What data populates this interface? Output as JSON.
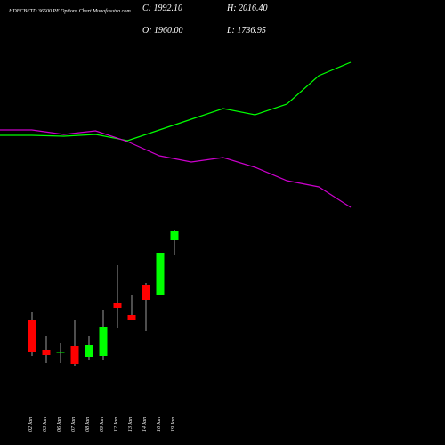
{
  "chart_data": [
    {
      "type": "candlestick",
      "title": "HDFCBETD 36500 PE Options Chart Munafasutra.com",
      "close_label": "C: 1992.10",
      "high_label": "H: 2016.40",
      "open_label": "O: 1960.00",
      "low_label": "L: 1736.95",
      "categories": [
        "02 Jan",
        "03 Jan",
        "06 Jan",
        "07 Jan",
        "08 Jan",
        "09 Jan",
        "12 Jan",
        "13 Jan",
        "14 Jan",
        "16 Jan",
        "19 Jan"
      ],
      "open": [
        140,
        107,
        104,
        111,
        99,
        100,
        160,
        146,
        180,
        168,
        230
      ],
      "high": [
        150,
        122,
        115,
        140,
        122,
        152,
        202,
        168,
        182,
        216,
        242
      ],
      "low": [
        100,
        92,
        92,
        89,
        95,
        95,
        132,
        140,
        128,
        168,
        214
      ],
      "close": [
        104,
        101,
        105,
        91,
        112,
        133,
        154,
        140,
        163,
        216,
        240
      ],
      "up_color": "#00ff00",
      "down_color": "#ff0000",
      "ylim": [
        0,
        500
      ]
    },
    {
      "type": "line",
      "x": [
        0,
        1,
        2,
        3,
        4,
        5,
        6,
        7,
        8,
        9,
        10,
        11
      ],
      "xlim": [
        0,
        11
      ],
      "ylim": [
        0,
        500
      ],
      "series": [
        {
          "color": "#00ff00",
          "values": [
            348,
            348,
            347,
            349,
            342,
            354,
            366,
            378,
            371,
            383,
            415,
            430
          ]
        },
        {
          "color": "#cc00cc",
          "values": [
            354,
            354,
            349,
            353,
            341,
            325,
            318,
            323,
            312,
            297,
            290,
            267
          ]
        }
      ]
    }
  ]
}
